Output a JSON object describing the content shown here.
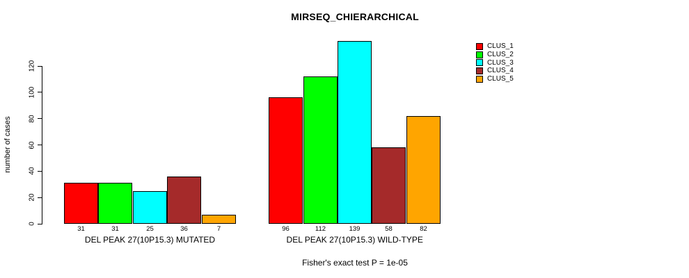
{
  "title": "MIRSEQ_CHIERARCHICAL",
  "footer": "Fisher's exact test P = 1e-05",
  "chart_data": {
    "type": "bar",
    "title": "MIRSEQ_CHIERARCHICAL",
    "xlabel": "",
    "ylabel": "number of cases",
    "categories": [
      "DEL PEAK 27(10P15.3) MUTATED",
      "DEL PEAK 27(10P15.3) WILD-TYPE"
    ],
    "series": [
      {
        "name": "CLUS_1",
        "color": "#FF0000",
        "values": [
          31,
          96
        ]
      },
      {
        "name": "CLUS_2",
        "color": "#00FF00",
        "values": [
          31,
          112
        ]
      },
      {
        "name": "CLUS_3",
        "color": "#00FFFF",
        "values": [
          25,
          139
        ]
      },
      {
        "name": "CLUS_4",
        "color": "#A52A2A",
        "values": [
          36,
          58
        ]
      },
      {
        "name": "CLUS_5",
        "color": "#FFA500",
        "values": [
          7,
          82
        ]
      }
    ],
    "bar_value_labels": [
      [
        "31",
        "31",
        "25",
        "36",
        "7"
      ],
      [
        "96",
        "112",
        "139",
        "58",
        "82"
      ]
    ],
    "yticks": [
      0,
      20,
      40,
      60,
      80,
      100,
      120
    ],
    "ylim": [
      0,
      139
    ],
    "grid": false,
    "legend_position": "right",
    "annotation": "Fisher's exact test P = 1e-05"
  }
}
